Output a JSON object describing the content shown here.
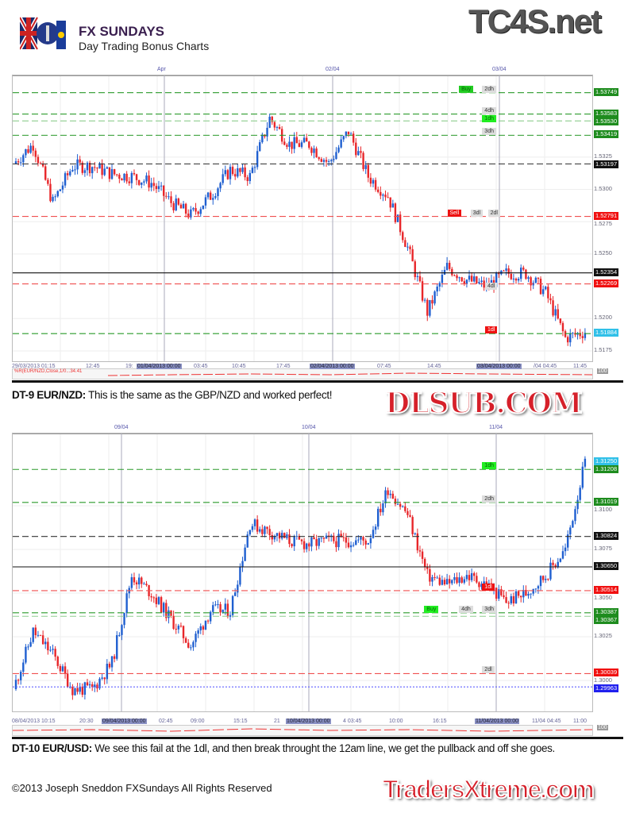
{
  "header": {
    "title": "FX SUNDAYS",
    "subtitle": "Day Trading Bonus Charts",
    "watermark_top": "TC4S.net"
  },
  "chart1": {
    "top_labels": [
      "Apr",
      "02/04",
      "03/04"
    ],
    "y_ticks": [
      "1.5325",
      "1.5300",
      "1.5275",
      "1.5250",
      "1.5200",
      "1.5175"
    ],
    "y_tick_values": [
      1.5325,
      1.53,
      1.5275,
      1.525,
      1.52,
      1.5175
    ],
    "levels": [
      {
        "label": "1.53749",
        "value": 1.53749,
        "color": "#2a9a2a",
        "style": "dashed",
        "bg": "#1e8c1e"
      },
      {
        "label": "1.53583",
        "value": 1.53583,
        "color": "#2a9a2a",
        "style": "dashed",
        "bg": "#1e8c1e"
      },
      {
        "label": "1.53530",
        "value": 1.5353,
        "color": "#8fce8f",
        "style": "dashed",
        "bg": "#1e8c1e"
      },
      {
        "label": "1.53419",
        "value": 1.53419,
        "color": "#2a9a2a",
        "style": "dashed",
        "bg": "#1e8c1e"
      },
      {
        "label": "1.53197",
        "value": 1.53197,
        "color": "#333",
        "style": "dashed",
        "bg": "#111"
      },
      {
        "label": "1.52791",
        "value": 1.52791,
        "color": "#f05050",
        "style": "dashed",
        "bg": "#f01010"
      },
      {
        "label": "1.52354",
        "value": 1.52354,
        "color": "#111",
        "style": "solid",
        "bg": "#111"
      },
      {
        "label": "1.52269",
        "value": 1.52269,
        "color": "#f05050",
        "style": "dashed",
        "bg": "#f01010"
      },
      {
        "label": "1.51884",
        "value": 1.51884,
        "color": "#2a9a2a",
        "style": "dashed",
        "bg": "#30c0e8"
      }
    ],
    "tags": [
      {
        "text": "Buy",
        "value": 1.53749,
        "pos": 0.77,
        "bg": "#22cc22",
        "fg": "#060"
      },
      {
        "text": "2dh",
        "value": 1.53749,
        "pos": 0.81,
        "bg": "#ddd",
        "fg": "#333"
      },
      {
        "text": "4dh",
        "value": 1.53583,
        "pos": 0.81,
        "bg": "#ddd",
        "fg": "#333"
      },
      {
        "text": "1dh",
        "value": 1.5353,
        "pos": 0.81,
        "bg": "#22ee22",
        "fg": "#060"
      },
      {
        "text": "3dh",
        "value": 1.53419,
        "pos": 0.81,
        "bg": "#ddd",
        "fg": "#333"
      },
      {
        "text": "Sell",
        "value": 1.52791,
        "pos": 0.75,
        "bg": "#ee1111",
        "fg": "#fff"
      },
      {
        "text": "3dl",
        "value": 1.52791,
        "pos": 0.79,
        "bg": "#ddd",
        "fg": "#333"
      },
      {
        "text": "2dl",
        "value": 1.52791,
        "pos": 0.82,
        "bg": "#ddd",
        "fg": "#333"
      },
      {
        "text": "4dl",
        "value": 1.5222,
        "pos": 0.815,
        "bg": "#ddd",
        "fg": "#333"
      },
      {
        "text": "1dl",
        "value": 1.51884,
        "pos": 0.815,
        "bg": "#ee1111",
        "fg": "#fff"
      }
    ],
    "x_labels": [
      {
        "t": "29/03/2013 01:15"
      },
      {
        "t": "12:45"
      },
      {
        "t": "19:"
      },
      {
        "t": "01/04/2013 00:00",
        "hl": true
      },
      {
        "t": "03:45"
      },
      {
        "t": "10:45"
      },
      {
        "t": "17:45"
      },
      {
        "t": "02/04/2013 00:00",
        "hl": true
      },
      {
        "t": "07:45"
      },
      {
        "t": "14:45"
      },
      {
        "t": "03/04/2013 00:00",
        "hl": true
      },
      {
        "t": "/04 04:45"
      },
      {
        "t": "11:45"
      }
    ],
    "indicator_label": "%R(EUR/NZD,Close,1/0...34.41",
    "indicator_max": "100",
    "close_path": [
      1.532,
      1.5335,
      1.529,
      1.5318,
      1.5318,
      1.5312,
      1.531,
      1.5305,
      1.529,
      1.528,
      1.5295,
      1.5315,
      1.531,
      1.5355,
      1.5335,
      1.5335,
      1.532,
      1.5345,
      1.531,
      1.5295,
      1.5255,
      1.5205,
      1.524,
      1.523,
      1.5225,
      1.5235,
      1.5235,
      1.522,
      1.5185,
      1.519
    ]
  },
  "caption1": {
    "bold": "DT-9 EUR/NZD:",
    "text": " This is the same as the GBP/NZD and worked perfect!"
  },
  "chart2": {
    "top_labels": [
      "09/04",
      "10/04",
      "11/04"
    ],
    "y_ticks": [
      "1.3100",
      "1.3075",
      "1.3050",
      "1.3025",
      "1.3000"
    ],
    "y_tick_values": [
      1.31,
      1.3075,
      1.305,
      1.3025,
      1.3
    ],
    "levels": [
      {
        "label": "1.31250",
        "value": 1.3125,
        "color": "#ccc",
        "style": "none",
        "bg": "#30c0e8"
      },
      {
        "label": "1.31208",
        "value": 1.31208,
        "color": "#2a9a2a",
        "style": "dashed",
        "bg": "#1e8c1e"
      },
      {
        "label": "1.31019",
        "value": 1.31019,
        "color": "#2a9a2a",
        "style": "dashed",
        "bg": "#1e8c1e"
      },
      {
        "label": "1.30824",
        "value": 1.30824,
        "color": "#333",
        "style": "dashed",
        "bg": "#111"
      },
      {
        "label": "1.30650",
        "value": 1.3065,
        "color": "#111",
        "style": "solid",
        "bg": "#111"
      },
      {
        "label": "1.30514",
        "value": 1.30514,
        "color": "#f05050",
        "style": "dashed",
        "bg": "#f01010"
      },
      {
        "label": "1.30387",
        "value": 1.30387,
        "color": "#2a9a2a",
        "style": "dashed",
        "bg": "#1e8c1e"
      },
      {
        "label": "1.30367",
        "value": 1.30367,
        "color": "#8fce8f",
        "style": "dashed",
        "bg": "#1e8c1e"
      },
      {
        "label": "1.30039",
        "value": 1.30039,
        "color": "#f05050",
        "style": "dashed",
        "bg": "#f01010"
      },
      {
        "label": "1.29963",
        "value": 1.29963,
        "color": "#6060ff",
        "style": "dotted",
        "bg": "#2020ee"
      }
    ],
    "tags": [
      {
        "text": "1dh",
        "value": 1.31208,
        "pos": 0.81,
        "bg": "#22ee22",
        "fg": "#060"
      },
      {
        "text": "2dh",
        "value": 1.31019,
        "pos": 0.81,
        "bg": "#ddd",
        "fg": "#333"
      },
      {
        "text": "1dl",
        "value": 1.30514,
        "pos": 0.81,
        "bg": "#ee1111",
        "fg": "#fff"
      },
      {
        "text": "Buy",
        "value": 1.30387,
        "pos": 0.71,
        "bg": "#22ee22",
        "fg": "#060"
      },
      {
        "text": "4dh",
        "value": 1.30387,
        "pos": 0.77,
        "bg": "#ddd",
        "fg": "#333"
      },
      {
        "text": "3dh",
        "value": 1.30387,
        "pos": 0.81,
        "bg": "#ddd",
        "fg": "#333"
      },
      {
        "text": "2dl",
        "value": 1.30039,
        "pos": 0.81,
        "bg": "#ddd",
        "fg": "#333"
      }
    ],
    "x_labels": [
      {
        "t": "08/04/2013 10:15"
      },
      {
        "t": "20:30"
      },
      {
        "t": "09/04/2013 00:00",
        "hl": true
      },
      {
        "t": "02:45"
      },
      {
        "t": "09:00"
      },
      {
        "t": "15:15"
      },
      {
        "t": "21"
      },
      {
        "t": "10/04/2013 00:00",
        "hl": true
      },
      {
        "t": "4 03:45"
      },
      {
        "t": "10:00"
      },
      {
        "t": "16:15"
      },
      {
        "t": "11/04/2013 00:00",
        "hl": true
      },
      {
        "t": "11/04 04:45"
      },
      {
        "t": "11:00"
      }
    ],
    "indicator_max": "100",
    "close_path": [
      1.2995,
      1.3028,
      1.3015,
      1.2995,
      1.2995,
      1.301,
      1.306,
      1.305,
      1.3035,
      1.302,
      1.304,
      1.304,
      1.309,
      1.3085,
      1.308,
      1.3078,
      1.308,
      1.308,
      1.308,
      1.311,
      1.3095,
      1.306,
      1.3055,
      1.306,
      1.3055,
      1.3045,
      1.305,
      1.306,
      1.3075,
      1.3125
    ]
  },
  "caption2": {
    "bold": "DT-10 EUR/USD:",
    "text": " We see this fail at the 1dl, and then break throught the 12am line, we get the pullback and off she goes."
  },
  "footer": "©2013 Joseph Sneddon FXSundays All Rights Reserved",
  "watermarks": {
    "mid": "DLSUB.COM",
    "bottom": "TradersXtreme.com"
  }
}
